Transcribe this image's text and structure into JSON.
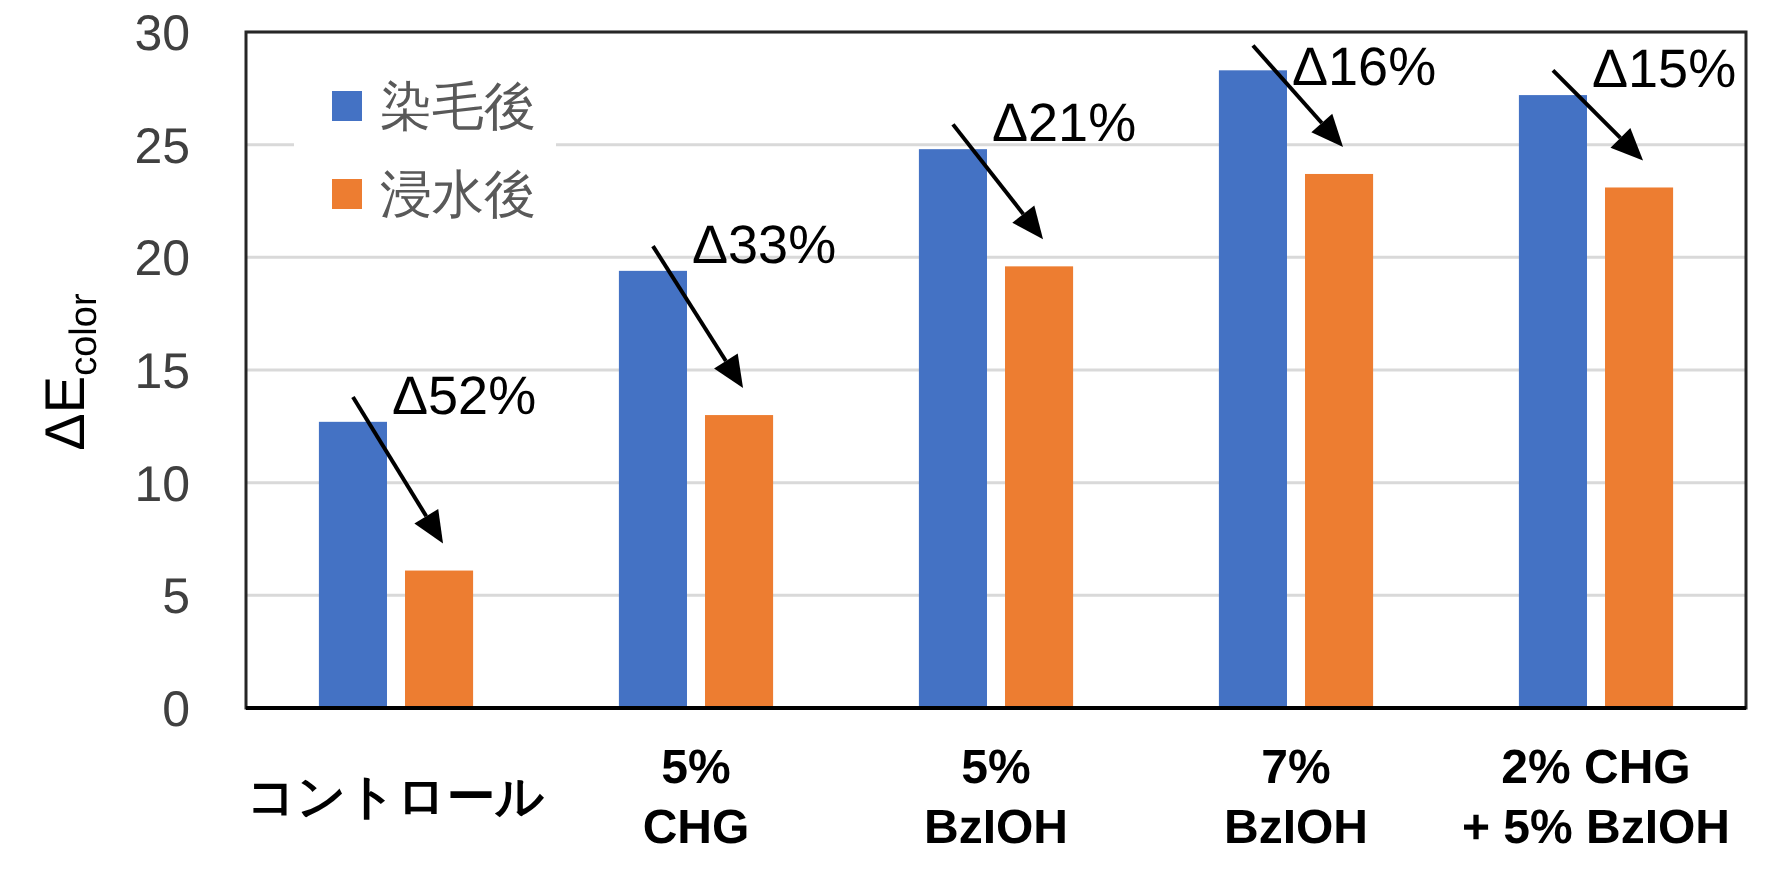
{
  "chart_data": {
    "type": "bar",
    "ylabel": "ΔE$_{color}$",
    "categories": [
      "コントロール",
      "5%\nCHG",
      "5%\nBzIOH",
      "7%\nBzIOH",
      "2% CHG\n+ 5% BzIOH"
    ],
    "series": [
      {
        "name": "染毛後",
        "color": "#4472c4",
        "values": [
          12.7,
          19.4,
          24.8,
          28.3,
          27.2
        ]
      },
      {
        "name": "浸水後",
        "color": "#ed7d31",
        "values": [
          6.1,
          13.0,
          19.6,
          23.7,
          23.1
        ]
      }
    ],
    "ylim": [
      0,
      30
    ],
    "yticks": [
      0,
      5,
      10,
      15,
      20,
      25,
      30
    ],
    "grid": "y",
    "legend": "top left",
    "annotations": [
      {
        "text": "Δ52%",
        "x": "コントロール",
        "y": 6.1
      },
      {
        "text": "Δ33%",
        "x": "5%\nCHG",
        "y": 13.0
      },
      {
        "text": "Δ21%",
        "x": "5%\nBzIOH",
        "y": 19.6
      },
      {
        "text": "Δ16%",
        "x": "7%\nBzIOH",
        "y": 23.7
      },
      {
        "text": "Δ15%",
        "x": "2% CHG\n+ 5% BzIOH",
        "y": 23.1
      }
    ]
  }
}
